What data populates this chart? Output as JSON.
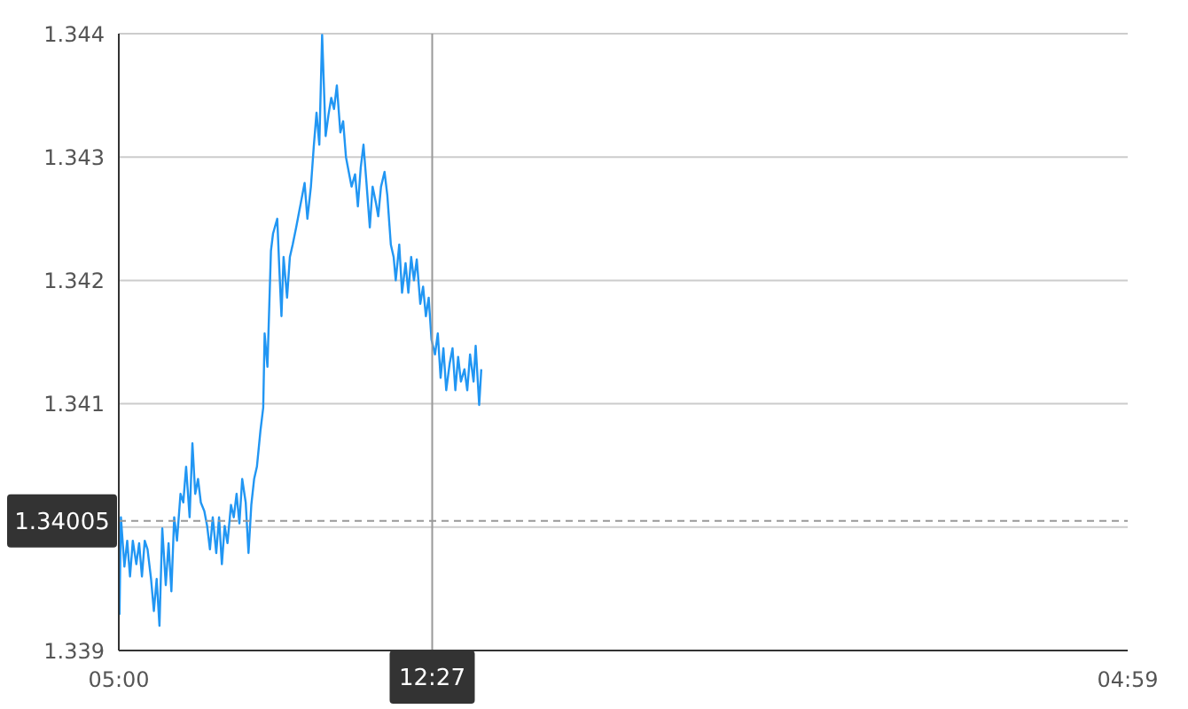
{
  "chart_data": {
    "type": "line",
    "color": "#2196f3",
    "marker": "none",
    "line_style": "solid",
    "grid": "y",
    "legend": false,
    "x": [
      "2000-01-01T05:01",
      "2000-01-01T05:03",
      "2000-01-01T05:08",
      "2000-01-01T05:12",
      "2000-01-01T05:16",
      "2000-01-01T05:20",
      "2000-01-01T05:25",
      "2000-01-01T05:29",
      "2000-01-01T05:33",
      "2000-01-01T05:37",
      "2000-01-01T05:41",
      "2000-01-01T05:46",
      "2000-01-01T05:50",
      "2000-01-01T05:54",
      "2000-01-01T05:58",
      "2000-01-01T06:02",
      "2000-01-01T06:07",
      "2000-01-01T06:11",
      "2000-01-01T06:15",
      "2000-01-01T06:19",
      "2000-01-01T06:23",
      "2000-01-01T06:28",
      "2000-01-01T06:32",
      "2000-01-01T06:36",
      "2000-01-01T06:41",
      "2000-01-01T06:45",
      "2000-01-01T06:49",
      "2000-01-01T06:53",
      "2000-01-01T06:57",
      "2000-01-01T07:02",
      "2000-01-01T07:06",
      "2000-01-01T07:10",
      "2000-01-01T07:14",
      "2000-01-01T07:19",
      "2000-01-01T07:23",
      "2000-01-01T07:27",
      "2000-01-01T07:31",
      "2000-01-01T07:35",
      "2000-01-01T07:40",
      "2000-01-01T07:44",
      "2000-01-01T07:48",
      "2000-01-01T07:52",
      "2000-01-01T07:56",
      "2000-01-01T08:01",
      "2000-01-01T08:05",
      "2000-01-01T08:09",
      "2000-01-01T08:13",
      "2000-01-01T08:17",
      "2000-01-01T08:22",
      "2000-01-01T08:26",
      "2000-01-01T08:28",
      "2000-01-01T08:32",
      "2000-01-01T08:37",
      "2000-01-01T08:40",
      "2000-01-01T08:46",
      "2000-01-01T08:49",
      "2000-01-01T08:52",
      "2000-01-01T08:55",
      "2000-01-01T09:00",
      "2000-01-01T09:04",
      "2000-01-01T09:08",
      "2000-01-01T09:13",
      "2000-01-01T09:16",
      "2000-01-01T09:21",
      "2000-01-01T09:25",
      "2000-01-01T09:29",
      "2000-01-01T09:34",
      "2000-01-01T09:38",
      "2000-01-01T09:42",
      "2000-01-01T09:46",
      "2000-01-01T09:50",
      "2000-01-01T09:55",
      "2000-01-01T09:59",
      "2000-01-01T10:03",
      "2000-01-01T10:07",
      "2000-01-01T10:11",
      "2000-01-01T10:16",
      "2000-01-01T10:20",
      "2000-01-01T10:24",
      "2000-01-01T10:28",
      "2000-01-01T10:32",
      "2000-01-01T10:37",
      "2000-01-01T10:41",
      "2000-01-01T10:45",
      "2000-01-01T10:49",
      "2000-01-01T10:53",
      "2000-01-01T10:58",
      "2000-01-01T11:02",
      "2000-01-01T11:07",
      "2000-01-01T11:10",
      "2000-01-01T11:14",
      "2000-01-01T11:19",
      "2000-01-01T11:23",
      "2000-01-01T11:28",
      "2000-01-01T11:32",
      "2000-01-01T11:35",
      "2000-01-01T11:40",
      "2000-01-01T11:44",
      "2000-01-01T11:49",
      "2000-01-01T11:53",
      "2000-01-01T11:57",
      "2000-01-01T12:01",
      "2000-01-01T12:05",
      "2000-01-01T12:10",
      "2000-01-01T12:14",
      "2000-01-01T12:18",
      "2000-01-01T12:22",
      "2000-01-01T12:26",
      "2000-01-01T12:31",
      "2000-01-01T12:35",
      "2000-01-01T12:39",
      "2000-01-01T12:43",
      "2000-01-01T12:47",
      "2000-01-01T12:52",
      "2000-01-01T12:56",
      "2000-01-01T13:00",
      "2000-01-01T13:04",
      "2000-01-01T13:08",
      "2000-01-01T13:13",
      "2000-01-01T13:17",
      "2000-01-01T13:21",
      "2000-01-01T13:26",
      "2000-01-01T13:29",
      "2000-01-01T13:34",
      "2000-01-01T13:37"
    ],
    "values": [
      1.33929,
      1.34008,
      1.33968,
      1.33989,
      1.3396,
      1.33989,
      1.3397,
      1.33987,
      1.3396,
      1.33989,
      1.33982,
      1.33958,
      1.33932,
      1.33958,
      1.3392,
      1.33999,
      1.33953,
      1.33987,
      1.33948,
      1.34008,
      1.33989,
      1.34027,
      1.3402,
      1.34049,
      1.34008,
      1.34068,
      1.34027,
      1.34039,
      1.3402,
      1.34013,
      1.34001,
      1.33982,
      1.34008,
      1.33979,
      1.34008,
      1.3397,
      1.34001,
      1.33987,
      1.34018,
      1.34008,
      1.34027,
      1.34003,
      1.34039,
      1.3402,
      1.33979,
      1.34018,
      1.34039,
      1.34049,
      1.34078,
      1.34097,
      1.34157,
      1.3413,
      1.34224,
      1.34238,
      1.3425,
      1.34209,
      1.34171,
      1.34219,
      1.34186,
      1.34219,
      1.34229,
      1.34243,
      1.34252,
      1.34267,
      1.34279,
      1.3425,
      1.34276,
      1.34308,
      1.34336,
      1.3431,
      1.34399,
      1.34317,
      1.34334,
      1.34348,
      1.34339,
      1.34358,
      1.3432,
      1.34329,
      1.343,
      1.34288,
      1.34276,
      1.34286,
      1.3426,
      1.34291,
      1.3431,
      1.34281,
      1.34243,
      1.34276,
      1.34262,
      1.34252,
      1.34276,
      1.34288,
      1.34269,
      1.34229,
      1.34219,
      1.342,
      1.34229,
      1.3419,
      1.34214,
      1.3419,
      1.34219,
      1.342,
      1.34217,
      1.34181,
      1.34195,
      1.34171,
      1.34186,
      1.34152,
      1.3414,
      1.34157,
      1.34121,
      1.34145,
      1.34111,
      1.34133,
      1.34145,
      1.34111,
      1.34138,
      1.34118,
      1.34128,
      1.34111,
      1.3414,
      1.34118,
      1.34147,
      1.34099,
      1.34128
    ],
    "xlim": [
      "2000-01-01T05:00",
      "2000-01-02T04:59"
    ],
    "xticks": [
      {
        "value": "2000-01-01T05:00",
        "label": "05:00"
      },
      {
        "value": "2000-01-02T04:59",
        "label": "04:59"
      }
    ],
    "ylim": [
      1.339,
      1.344
    ],
    "yticks": [
      1.339,
      {
        "value": 1.34,
        "label": null
      },
      1.341,
      1.342,
      1.343,
      1.344
    ],
    "ref_lines": [
      {
        "axis": "x",
        "value": "2000-01-01T12:27",
        "label": "12:27",
        "color": "#999999",
        "line_style": "solid"
      },
      {
        "axis": "y",
        "value": 1.34005,
        "label": "1.34005",
        "color": "#999999",
        "line_style": "dashed"
      }
    ]
  }
}
